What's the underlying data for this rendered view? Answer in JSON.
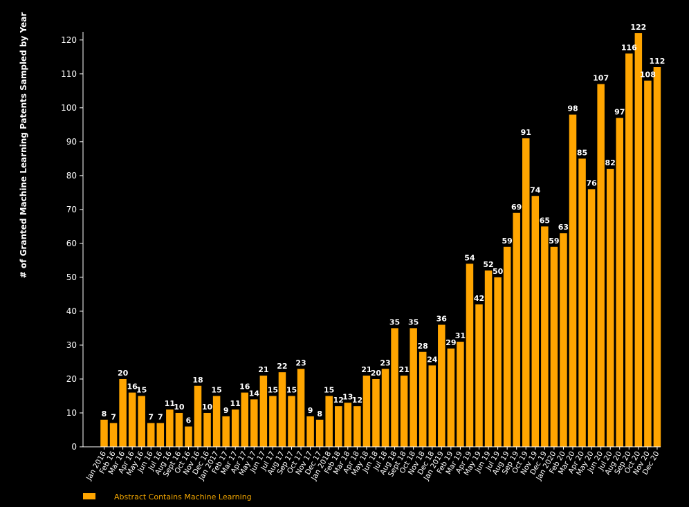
{
  "chart_data": {
    "type": "bar",
    "ylabel": "# of Granted Machine Learning Patents Sampled by Year",
    "xlabel": "",
    "ylim": [
      0,
      122
    ],
    "yticks": [
      0,
      10,
      20,
      30,
      40,
      50,
      60,
      70,
      80,
      90,
      100,
      110,
      120
    ],
    "grid": false,
    "legend_position": "bottom-left",
    "bar_color": "#ffa500",
    "categories": [
      "Jan 2016",
      "Feb 16",
      "Mar 16",
      "Apr 16",
      "May 16",
      "Jun 16",
      "Jul 16",
      "Aug 16",
      "Sept 16",
      "Oct 16",
      "Nov 16",
      "Dec 16",
      "Jan 2017",
      "Feb 17",
      "Mar 17",
      "Apr 17",
      "May 17",
      "Jun 17",
      "Jul 17",
      "Aug 17",
      "Sep 17",
      "Oct 17",
      "Nov 17",
      "Dec 17",
      "Jan 2018",
      "Feb 18",
      "Mar 18",
      "Apr 18",
      "May 18",
      "Jun 18",
      "Jul 18",
      "Aug 18",
      "Sept 18",
      "Oct 18",
      "Nov 18",
      "Dec 18",
      "Jan 2019",
      "Feb 19",
      "Mar 19",
      "Apr 19",
      "May 19",
      "Jun 19",
      "Jul 19",
      "Aug 19",
      "Sep 19",
      "Oct 19",
      "Nov 19",
      "Dec 19",
      "Jan 2020",
      "Feb 20",
      "Mar 20",
      "Apr 20",
      "May 20",
      "Jun 20",
      "Jul 20",
      "Aug 20",
      "Sep 20",
      "Oct 20",
      "Nov 20",
      "Dec 20"
    ],
    "series": [
      {
        "name": "Abstract Contains Machine Learning",
        "values": [
          8,
          7,
          20,
          16,
          15,
          7,
          7,
          11,
          10,
          6,
          18,
          10,
          15,
          9,
          11,
          16,
          14,
          21,
          15,
          22,
          15,
          23,
          9,
          8,
          15,
          12,
          13,
          12,
          21,
          20,
          23,
          35,
          21,
          35,
          28,
          24,
          36,
          29,
          31,
          54,
          42,
          52,
          50,
          59,
          69,
          91,
          74,
          65,
          59,
          63,
          98,
          85,
          76,
          107,
          82,
          97,
          116,
          122,
          108,
          112
        ]
      }
    ]
  }
}
